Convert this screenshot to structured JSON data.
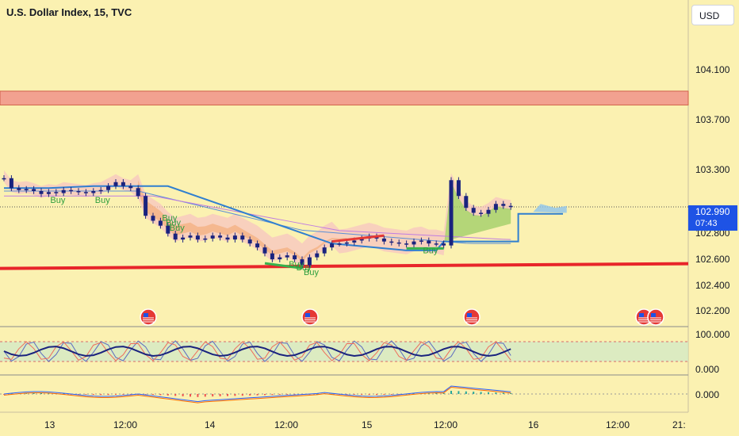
{
  "header": {
    "title": "U.S. Dollar Index, 15, TVC",
    "currency_button": "USD"
  },
  "last_price": {
    "value": "102.990",
    "countdown": "07:43",
    "color": "#1e53e5"
  },
  "colors": {
    "background": "#fbf1b1",
    "resistance_zone": "#f2a190",
    "support_line": "#e8252a",
    "candle": "#1a237e",
    "ribbon_warm": "#f4b183",
    "ribbon_green": "#9ccc65",
    "cloud": "#f6c2c2",
    "signal": "#2e7d32"
  },
  "chart_data": [
    {
      "type": "line",
      "title": "U.S. Dollar Index, 15, TVC",
      "x_ticks": [
        "13",
        "12:00",
        "14",
        "12:00",
        "15",
        "12:00",
        "16",
        "12:00",
        "21:"
      ],
      "y_ticks": [
        "104.100",
        "103.700",
        "103.300",
        "102.800",
        "102.600",
        "102.400",
        "102.200"
      ],
      "ylim": [
        102.14,
        104.34
      ],
      "series": [
        {
          "values": [
            [
              0,
              103.28
            ],
            [
              1,
              103.18
            ],
            [
              2,
              103.16
            ],
            [
              3,
              103.17
            ],
            [
              4,
              103.15
            ],
            [
              5,
              103.12
            ],
            [
              6,
              103.14
            ],
            [
              7,
              103.13
            ],
            [
              8,
              103.16
            ],
            [
              9,
              103.15
            ],
            [
              10,
              103.14
            ],
            [
              11,
              103.13
            ],
            [
              12,
              103.15
            ],
            [
              13,
              103.16
            ],
            [
              14,
              103.2
            ],
            [
              15,
              103.24
            ],
            [
              16,
              103.2
            ],
            [
              17,
              103.18
            ],
            [
              18,
              103.1
            ],
            [
              19,
              102.9
            ],
            [
              20,
              102.85
            ],
            [
              21,
              102.8
            ],
            [
              22,
              102.72
            ],
            [
              23,
              102.66
            ],
            [
              24,
              102.68
            ],
            [
              25,
              102.7
            ],
            [
              26,
              102.66
            ],
            [
              27,
              102.67
            ],
            [
              28,
              102.7
            ],
            [
              29,
              102.68
            ],
            [
              30,
              102.66
            ],
            [
              31,
              102.7
            ],
            [
              32,
              102.66
            ],
            [
              33,
              102.62
            ],
            [
              34,
              102.58
            ],
            [
              35,
              102.52
            ],
            [
              36,
              102.46
            ],
            [
              37,
              102.48
            ],
            [
              38,
              102.5
            ],
            [
              39,
              102.46
            ],
            [
              40,
              102.4
            ],
            [
              41,
              102.48
            ],
            [
              42,
              102.52
            ],
            [
              43,
              102.58
            ],
            [
              44,
              102.62
            ],
            [
              45,
              102.62
            ],
            [
              46,
              102.63
            ],
            [
              47,
              102.65
            ],
            [
              48,
              102.67
            ],
            [
              49,
              102.69
            ],
            [
              50,
              102.67
            ],
            [
              51,
              102.64
            ],
            [
              52,
              102.63
            ],
            [
              53,
              102.62
            ],
            [
              54,
              102.61
            ],
            [
              55,
              102.64
            ],
            [
              56,
              102.65
            ],
            [
              57,
              102.62
            ],
            [
              58,
              102.62
            ],
            [
              59,
              102.6
            ],
            [
              60,
              103.26
            ],
            [
              61,
              103.1
            ],
            [
              62,
              102.98
            ],
            [
              63,
              102.93
            ],
            [
              64,
              102.92
            ],
            [
              65,
              102.96
            ],
            [
              66,
              103.02
            ],
            [
              67,
              103.0
            ],
            [
              68,
              102.99
            ]
          ]
        }
      ],
      "levels": {
        "resistance_band": [
          104.02,
          104.16
        ],
        "support": 102.4,
        "last_price": 102.99
      },
      "grid": false
    },
    {
      "type": "line",
      "y_ticks": [
        "100.000",
        "0.000"
      ]
    },
    {
      "type": "line",
      "y_ticks": [
        "0.000"
      ]
    }
  ],
  "annotations": {
    "buy_label": "Buy"
  },
  "icons": {
    "event_marker": "us-flag-event-icon"
  }
}
